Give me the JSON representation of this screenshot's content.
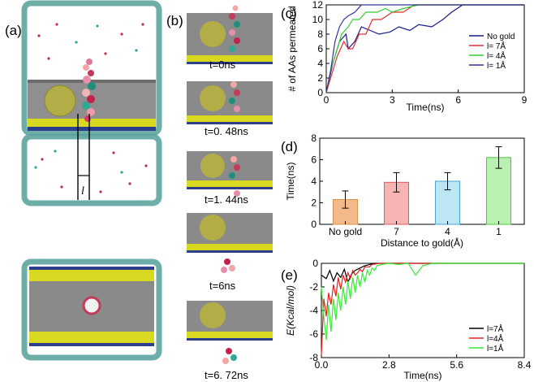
{
  "panel_a": {
    "letter": "(a)",
    "l_label": "l"
  },
  "panel_b": {
    "letter": "(b)",
    "frames": [
      {
        "time_label": "t=0ns"
      },
      {
        "time_label": "t=0. 48ns"
      },
      {
        "time_label": "t=1. 44ns"
      },
      {
        "time_label": "t=6ns"
      },
      {
        "time_label": "t=6. 72ns"
      }
    ]
  },
  "colors": {
    "no_gold": "#1a1a8c",
    "d7": "#e03030",
    "d4": "#33cc33",
    "d1": "#333399",
    "black": "#000000",
    "red": "#e02020",
    "green": "#33ee33",
    "bar_no_gold": "#f2b98a",
    "bar_7": "#f7b4b4",
    "bar_4": "#bde6f5",
    "bar_1": "#b9f2b0",
    "membrane": "#8a8a8a",
    "gold": "#b5b04a",
    "tube": "#e0f0ee"
  },
  "chart_data": [
    {
      "id": "c",
      "letter": "(c)",
      "type": "line",
      "xlabel": "Time(ns)",
      "ylabel": "# of AAs permeated",
      "xlim": [
        0,
        9
      ],
      "ylim": [
        0,
        12
      ],
      "xticks": [
        "0",
        "3",
        "6",
        "9"
      ],
      "yticks": [
        "0",
        "2",
        "4",
        "6",
        "8",
        "10",
        "12"
      ],
      "legend_position": "right",
      "series": [
        {
          "name": "No gold",
          "color_key": "no_gold",
          "x": [
            0,
            0.3,
            0.6,
            0.9,
            1.0,
            1.3,
            1.6,
            2.0,
            2.4,
            2.9,
            3.3,
            3.8,
            4.2,
            4.8,
            5.3,
            5.7,
            6.2,
            7.0,
            9.0
          ],
          "y": [
            0,
            4,
            7,
            8,
            6,
            7,
            9,
            8.5,
            8,
            8.3,
            9,
            8.5,
            9.3,
            9,
            10,
            11,
            12,
            12,
            12
          ]
        },
        {
          "name": "l= 7Å",
          "color_key": "d7",
          "x": [
            0,
            0.2,
            0.5,
            0.8,
            1.0,
            1.2,
            1.5,
            1.8,
            2.1,
            2.5,
            3.0,
            3.5,
            4.0,
            9.0
          ],
          "y": [
            0,
            2,
            5,
            7,
            6,
            6,
            8,
            8,
            10,
            10,
            11,
            11,
            12,
            12
          ]
        },
        {
          "name": "l= 4Å",
          "color_key": "d4",
          "x": [
            0,
            0.2,
            0.5,
            0.7,
            1.0,
            1.2,
            1.5,
            1.8,
            2.3,
            2.7,
            3.0,
            3.5,
            4.2,
            9.0
          ],
          "y": [
            0,
            3,
            6,
            8,
            9,
            10,
            10,
            11,
            11,
            11.5,
            11,
            11.5,
            12,
            12
          ]
        },
        {
          "name": "l= 1Å",
          "color_key": "d1",
          "x": [
            0,
            0.2,
            0.4,
            0.6,
            0.8,
            1.0,
            1.3,
            1.6,
            2.0,
            9.0
          ],
          "y": [
            0,
            3,
            7,
            9,
            10,
            10.5,
            11,
            12,
            12,
            12
          ]
        }
      ]
    },
    {
      "id": "d",
      "letter": "(d)",
      "type": "bar",
      "xlabel": "Distance to gold(Å)",
      "ylabel": "Time(ns)",
      "categories": [
        "No gold",
        "7",
        "4",
        "1"
      ],
      "values": [
        2.3,
        3.9,
        4.0,
        6.2
      ],
      "errors": [
        0.8,
        0.9,
        0.8,
        1.0
      ],
      "ylim": [
        0,
        8
      ],
      "yticks": [
        "0",
        "2",
        "4",
        "6",
        "8"
      ]
    },
    {
      "id": "e",
      "letter": "(e)",
      "type": "line",
      "xlabel": "Time(ns)",
      "ylabel": "E(Kcal/mol)",
      "xlim": [
        0,
        8.4
      ],
      "ylim": [
        -8,
        0
      ],
      "xticks": [
        "0.0",
        "2.8",
        "5.6",
        "8.4"
      ],
      "yticks": [
        "0",
        "-2",
        "-4",
        "-6",
        "-8"
      ],
      "legend_position": "bottom-right",
      "series": [
        {
          "name": "l=7Å",
          "color_key": "black",
          "x": [
            0,
            0.2,
            0.35,
            0.5,
            0.65,
            0.8,
            0.95,
            1.1,
            1.25,
            1.4,
            1.6,
            1.8,
            2.0,
            2.2,
            2.5,
            8.4
          ],
          "y": [
            -1.0,
            -1.3,
            -0.6,
            -1.5,
            -0.8,
            -1.2,
            -0.5,
            -1.6,
            -0.9,
            -0.6,
            -0.4,
            -0.2,
            -0.1,
            0,
            0,
            0
          ]
        },
        {
          "name": "l=4Å",
          "color_key": "red",
          "x": [
            0,
            0.1,
            0.2,
            0.3,
            0.4,
            0.5,
            0.6,
            0.7,
            0.8,
            0.9,
            1.0,
            1.1,
            1.2,
            1.3,
            1.4,
            1.5,
            1.6,
            1.7,
            1.8,
            2.0,
            2.1,
            2.4,
            8.4
          ],
          "y": [
            -7.8,
            -3.0,
            -4.5,
            -2.5,
            -3.5,
            -1.8,
            -2.8,
            -1.2,
            -2.2,
            -1.0,
            -1.6,
            -0.8,
            -1.3,
            -0.6,
            -1.0,
            -0.8,
            -0.5,
            -0.7,
            -0.3,
            -0.3,
            -0.1,
            0,
            0
          ]
        },
        {
          "name": "l=1Å",
          "color_key": "green",
          "x": [
            0,
            0.1,
            0.2,
            0.3,
            0.4,
            0.5,
            0.6,
            0.7,
            0.8,
            0.9,
            1.0,
            1.1,
            1.2,
            1.3,
            1.4,
            1.5,
            1.6,
            1.7,
            1.8,
            1.9,
            2.0,
            2.1,
            2.2,
            2.3,
            2.5,
            2.8,
            3.2,
            3.6,
            3.9,
            4.2,
            4.6,
            5.0,
            8.4
          ],
          "y": [
            -2.0,
            -4.5,
            -6.5,
            -3.5,
            -5.8,
            -3.0,
            -4.8,
            -2.5,
            -4.0,
            -2.0,
            -3.5,
            -1.5,
            -3.0,
            -1.2,
            -2.5,
            -1.0,
            -2.0,
            -0.8,
            -1.6,
            -0.6,
            -1.0,
            -0.4,
            -0.6,
            -0.2,
            -0.1,
            0,
            -0.1,
            0,
            -1.0,
            -0.2,
            0,
            0,
            0
          ]
        }
      ]
    }
  ]
}
